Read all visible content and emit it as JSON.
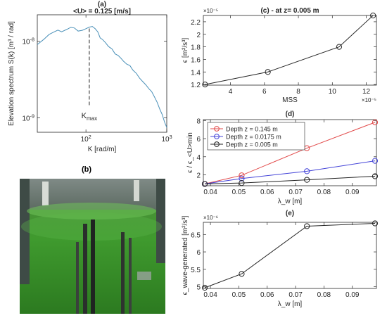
{
  "figure": {
    "panel_b_label": "(b)"
  },
  "colors": {
    "spectrum_line": "#4a90b8",
    "depth_145": "#e24a4a",
    "depth_0175": "#4444d8",
    "depth_005": "#222222",
    "axis": "#262626",
    "dashed": "#222222"
  },
  "chart_data": [
    {
      "id": "a",
      "type": "line",
      "panel_label": "(a)",
      "title": "<U> = 0.125 [m/s]",
      "xlabel": "K [rad/m]",
      "ylabel": "Elevation spectrum S(k)  [m³ / rad]",
      "xscale": "log",
      "yscale": "log",
      "xlim": [
        25,
        1000
      ],
      "ylim": [
        6.5e-10,
        2.2e-08
      ],
      "xticks": [
        {
          "v": 100,
          "label": "10",
          "exp": "2"
        },
        {
          "v": 1000,
          "label": "10",
          "exp": "3"
        }
      ],
      "yticks": [
        {
          "v": 1e-09,
          "label": "10",
          "exp": "-9"
        },
        {
          "v": 1e-08,
          "label": "10",
          "exp": "-8"
        }
      ],
      "annotation": {
        "text": "K",
        "sub": "max",
        "x": 110
      },
      "x": [
        25,
        30,
        35,
        40,
        45,
        50,
        58,
        65,
        72,
        80,
        90,
        100,
        110,
        120,
        130,
        140,
        150,
        160,
        175,
        190,
        210,
        230,
        250,
        270,
        290,
        320,
        350,
        380,
        420,
        460,
        500,
        550,
        600,
        650,
        700,
        760,
        820,
        880,
        940,
        1000
      ],
      "y": [
        9e-09,
        1.05e-08,
        1.22e-08,
        1.31e-08,
        1.39e-08,
        1.32e-08,
        1.42e-08,
        1.51e-08,
        1.48e-08,
        1.35e-08,
        1.38e-08,
        1.45e-08,
        1.52e-08,
        1.55e-08,
        1.45e-08,
        1.32e-08,
        1.1e-08,
        1.05e-08,
        9.5e-09,
        8.5e-09,
        7.9e-09,
        6.8e-09,
        6.5e-09,
        6e-09,
        5.5e-09,
        5e-09,
        4.8e-09,
        4.2e-09,
        3.8e-09,
        3.3e-09,
        3e-09,
        2.7e-09,
        2.4e-09,
        2.2e-09,
        1.9e-09,
        1.6e-09,
        1.3e-09,
        1.1e-09,
        8.8e-10,
        7.5e-10
      ]
    },
    {
      "id": "c",
      "type": "line",
      "title": "(c) - at z= 0.005 m",
      "xlabel": "MSS",
      "ylabel": "ϵ [m²/s³]",
      "xlim": [
        2.4,
        12.6
      ],
      "ylim": [
        1.19,
        2.3
      ],
      "x_multiplier": "×10⁻⁵",
      "y_multiplier": "×10⁻⁵",
      "xticks": [
        {
          "v": 4,
          "label": "4"
        },
        {
          "v": 6,
          "label": "6"
        },
        {
          "v": 8,
          "label": "8"
        },
        {
          "v": 10,
          "label": "10"
        },
        {
          "v": 12,
          "label": "12"
        }
      ],
      "yticks": [
        {
          "v": 1.2,
          "label": "1.2"
        },
        {
          "v": 1.4,
          "label": "1.4"
        },
        {
          "v": 1.6,
          "label": "1.6"
        },
        {
          "v": 1.8,
          "label": "1.8"
        },
        {
          "v": 2.0,
          "label": "2"
        },
        {
          "v": 2.2,
          "label": "2.2"
        }
      ],
      "x": [
        2.5,
        6.2,
        10.4,
        12.4
      ],
      "y": [
        1.2,
        1.4,
        1.8,
        2.3
      ]
    },
    {
      "id": "d",
      "type": "line",
      "title": "(d)",
      "xlabel": "λ_w [m]",
      "ylabel": "ϵ / ϵ_<U>min",
      "xlim": [
        0.0375,
        0.0985
      ],
      "ylim": [
        0.8,
        8.1
      ],
      "xticks": [
        {
          "v": 0.04,
          "label": "0.04"
        },
        {
          "v": 0.05,
          "label": "0.05"
        },
        {
          "v": 0.06,
          "label": "0.06"
        },
        {
          "v": 0.07,
          "label": "0.07"
        },
        {
          "v": 0.08,
          "label": "0.08"
        },
        {
          "v": 0.09,
          "label": "0.09"
        }
      ],
      "yticks": [
        {
          "v": 2,
          "label": "2"
        },
        {
          "v": 4,
          "label": "4"
        },
        {
          "v": 6,
          "label": "6"
        },
        {
          "v": 8,
          "label": "8"
        }
      ],
      "legend_position": "top-left",
      "x": [
        0.038,
        0.051,
        0.074,
        0.098
      ],
      "series": [
        {
          "name": "Depth z = 0.145 m",
          "color_key": "depth_145",
          "values": [
            1.0,
            1.95,
            4.95,
            7.8
          ]
        },
        {
          "name": "Depth z = 0.0175 m",
          "color_key": "depth_0175",
          "values": [
            1.0,
            1.6,
            2.4,
            3.55
          ]
        },
        {
          "name": "Depth z = 0.005 m",
          "color_key": "depth_005",
          "values": [
            1.0,
            1.1,
            1.45,
            1.85
          ]
        }
      ]
    },
    {
      "id": "e",
      "type": "line",
      "title": "(e)",
      "xlabel": "λ_w [m]",
      "ylabel": "ϵ_wave-generated [m²/s³]",
      "xlim": [
        0.0375,
        0.0985
      ],
      "ylim": [
        4.95,
        6.85
      ],
      "y_multiplier": "×10⁻⁶",
      "xticks": [
        {
          "v": 0.04,
          "label": "0.04"
        },
        {
          "v": 0.05,
          "label": "0.05"
        },
        {
          "v": 0.06,
          "label": "0.06"
        },
        {
          "v": 0.07,
          "label": "0.07"
        },
        {
          "v": 0.08,
          "label": "0.08"
        },
        {
          "v": 0.09,
          "label": "0.09"
        }
      ],
      "yticks": [
        {
          "v": 5,
          "label": "5"
        },
        {
          "v": 5.5,
          "label": "5.5"
        },
        {
          "v": 6,
          "label": "6"
        },
        {
          "v": 6.5,
          "label": "6.5"
        }
      ],
      "x": [
        0.038,
        0.051,
        0.074,
        0.098
      ],
      "y": [
        4.97,
        5.37,
        6.74,
        6.82
      ]
    }
  ]
}
